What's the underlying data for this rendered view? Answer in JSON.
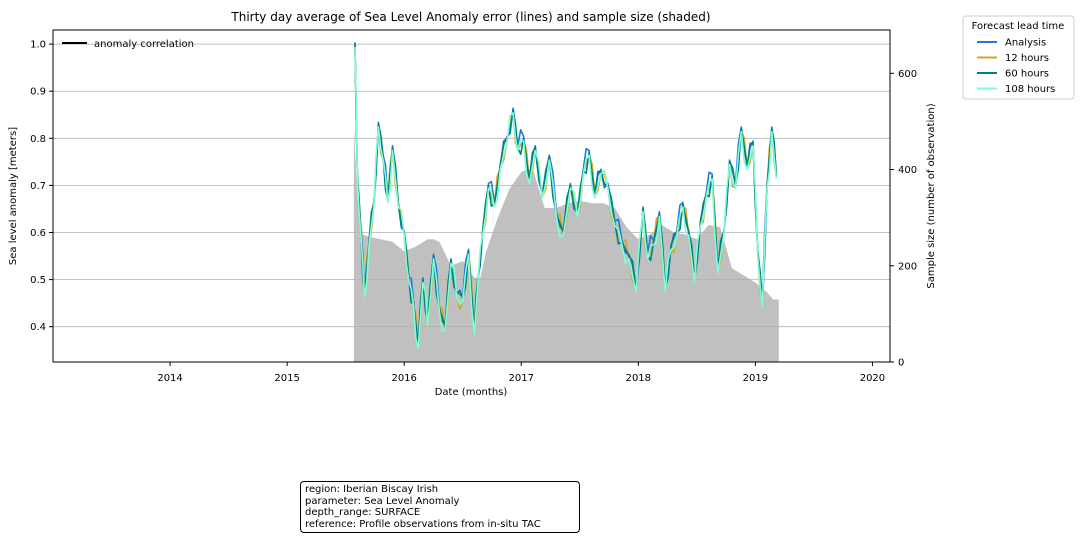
{
  "chart_data": {
    "type": "line",
    "title": "Thirty day average of Sea Level Anomaly error (lines) and sample size (shaded)",
    "xlabel": "Date (months)",
    "ylabel": "Sea level anomaly [meters]",
    "y2label": "Sample size (number of observation)",
    "xlim": [
      2013.0,
      2020.15
    ],
    "ylim": [
      0.325,
      1.03
    ],
    "y2lim": [
      0,
      690
    ],
    "xticks": [
      "2014",
      "2015",
      "2016",
      "2017",
      "2018",
      "2019",
      "2020"
    ],
    "yticks": [
      "0.4",
      "0.5",
      "0.6",
      "0.7",
      "0.8",
      "0.9",
      "1.0"
    ],
    "y2ticks": [
      "0",
      "200",
      "400",
      "600"
    ],
    "grid": "horizontal",
    "inner_legend": {
      "label": "anomaly correlation",
      "color": "#000000",
      "position": "top-left"
    },
    "legend": {
      "title": "Forecast lead time",
      "position": "outside-top-right"
    },
    "series": [
      {
        "name": "Analysis",
        "color": "#1f77e4",
        "offset": 0.004
      },
      {
        "name": "12 hours",
        "color": "#daa520",
        "offset": -0.004
      },
      {
        "name": "60 hours",
        "color": "#008080",
        "offset": 0.0
      },
      {
        "name": "108 hours",
        "color": "#7fffd4",
        "offset": -0.006
      }
    ],
    "error_line": {
      "x": [
        2015.58,
        2015.6,
        2015.63,
        2015.66,
        2015.7,
        2015.74,
        2015.78,
        2015.82,
        2015.86,
        2015.9,
        2015.95,
        2016.0,
        2016.04,
        2016.08,
        2016.12,
        2016.16,
        2016.2,
        2016.25,
        2016.3,
        2016.35,
        2016.4,
        2016.45,
        2016.5,
        2016.55,
        2016.6,
        2016.63,
        2016.67,
        2016.72,
        2016.77,
        2016.82,
        2016.88,
        2016.93,
        2016.97,
        2017.02,
        2017.07,
        2017.12,
        2017.18,
        2017.24,
        2017.3,
        2017.36,
        2017.42,
        2017.48,
        2017.53,
        2017.58,
        2017.63,
        2017.68,
        2017.74,
        2017.8,
        2017.86,
        2017.92,
        2017.98,
        2018.04,
        2018.08,
        2018.13,
        2018.18,
        2018.23,
        2018.28,
        2018.33,
        2018.38,
        2018.43,
        2018.48,
        2018.53,
        2018.58,
        2018.63,
        2018.68,
        2018.73,
        2018.78,
        2018.83,
        2018.88,
        2018.93,
        2018.98,
        2019.02,
        2019.06,
        2019.1,
        2019.14,
        2019.18
      ],
      "y": [
        1.0,
        0.72,
        0.6,
        0.47,
        0.58,
        0.66,
        0.83,
        0.76,
        0.67,
        0.78,
        0.66,
        0.6,
        0.5,
        0.45,
        0.36,
        0.5,
        0.41,
        0.55,
        0.44,
        0.4,
        0.54,
        0.47,
        0.46,
        0.56,
        0.39,
        0.5,
        0.6,
        0.7,
        0.66,
        0.74,
        0.8,
        0.86,
        0.78,
        0.8,
        0.71,
        0.78,
        0.68,
        0.76,
        0.64,
        0.6,
        0.7,
        0.64,
        0.73,
        0.77,
        0.68,
        0.73,
        0.7,
        0.62,
        0.58,
        0.55,
        0.48,
        0.65,
        0.55,
        0.58,
        0.64,
        0.48,
        0.57,
        0.6,
        0.66,
        0.6,
        0.5,
        0.62,
        0.68,
        0.72,
        0.52,
        0.6,
        0.75,
        0.7,
        0.82,
        0.74,
        0.79,
        0.56,
        0.45,
        0.7,
        0.82,
        0.72
      ]
    },
    "sample_size": {
      "x": [
        2015.57,
        2015.6,
        2015.65,
        2015.7,
        2015.8,
        2015.9,
        2016.0,
        2016.1,
        2016.2,
        2016.25,
        2016.3,
        2016.4,
        2016.5,
        2016.6,
        2016.65,
        2016.7,
        2016.8,
        2016.9,
        2017.0,
        2017.05,
        2017.1,
        2017.15,
        2017.2,
        2017.3,
        2017.4,
        2017.5,
        2017.6,
        2017.7,
        2017.8,
        2017.9,
        2018.0,
        2018.1,
        2018.2,
        2018.3,
        2018.4,
        2018.5,
        2018.6,
        2018.7,
        2018.8,
        2018.9,
        2019.0,
        2019.1,
        2019.15,
        2019.2
      ],
      "y": [
        490,
        340,
        265,
        260,
        255,
        250,
        230,
        240,
        255,
        255,
        250,
        200,
        210,
        175,
        175,
        230,
        300,
        360,
        395,
        400,
        400,
        360,
        320,
        320,
        330,
        335,
        330,
        330,
        320,
        280,
        255,
        265,
        285,
        270,
        265,
        255,
        285,
        280,
        195,
        180,
        165,
        145,
        130,
        130
      ]
    }
  },
  "info": {
    "region": "region: Iberian Biscay Irish",
    "parameter": "parameter: Sea Level Anomaly",
    "depth_range": "depth_range: SURFACE",
    "reference": "reference: Profile observations from in-situ TAC"
  }
}
